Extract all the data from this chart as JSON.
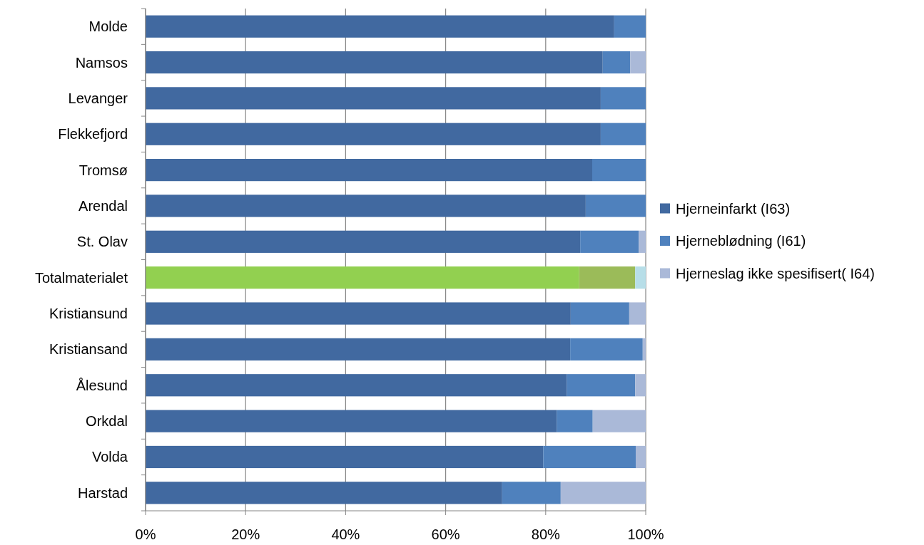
{
  "chart_data": {
    "type": "bar",
    "orientation": "horizontal",
    "stacked": true,
    "categories": [
      "Molde",
      "Namsos",
      "Levanger",
      "Flekkefjord",
      "Tromsø",
      "Arendal",
      "St. Olav",
      "Totalmaterialet",
      "Kristiansund",
      "Kristiansand",
      "Ålesund",
      "Orkdal",
      "Volda",
      "Harstad"
    ],
    "series": [
      {
        "name": "Hjerneinfarkt (I63)",
        "color": "#4169a0",
        "colors": [
          "#4169a0",
          "#4169a0",
          "#4169a0",
          "#4169a0",
          "#4169a0",
          "#4169a0",
          "#4169a0",
          "#92d050",
          "#4169a0",
          "#4169a0",
          "#4169a0",
          "#4169a0",
          "#4169a0",
          "#4169a0"
        ],
        "values": [
          93.7,
          91.4,
          91.0,
          91.0,
          89.3,
          88.0,
          86.9,
          86.7,
          85.0,
          84.9,
          84.2,
          82.2,
          79.5,
          71.3
        ]
      },
      {
        "name": "Hjerneblødning (I61)",
        "color": "#4f81bd",
        "colors": [
          "#4f81bd",
          "#4f81bd",
          "#4f81bd",
          "#4f81bd",
          "#4f81bd",
          "#4f81bd",
          "#4f81bd",
          "#9bbb59",
          "#4f81bd",
          "#4f81bd",
          "#4f81bd",
          "#4f81bd",
          "#4f81bd",
          "#4f81bd"
        ],
        "values": [
          6.3,
          5.5,
          9.0,
          9.0,
          10.7,
          12.0,
          11.7,
          11.2,
          11.7,
          14.5,
          13.7,
          7.2,
          18.5,
          11.7
        ]
      },
      {
        "name": "Hjerneslag ikke spesifisert( I64)",
        "color": "#aab9d8",
        "colors": [
          "#aab9d8",
          "#aab9d8",
          "#aab9d8",
          "#aab9d8",
          "#aab9d8",
          "#aab9d8",
          "#aab9d8",
          "#b7dee8",
          "#aab9d8",
          "#aab9d8",
          "#aab9d8",
          "#aab9d8",
          "#aab9d8",
          "#aab9d8"
        ],
        "values": [
          0,
          3.1,
          0,
          0,
          0,
          0,
          1.4,
          2.1,
          3.3,
          0.6,
          2.1,
          10.6,
          2.0,
          17.0
        ]
      }
    ],
    "xlim": [
      0,
      100
    ],
    "xticks": [
      {
        "value": 0,
        "label": "0%"
      },
      {
        "value": 20,
        "label": "20%"
      },
      {
        "value": 40,
        "label": "40%"
      },
      {
        "value": 60,
        "label": "60%"
      },
      {
        "value": 80,
        "label": "80%"
      },
      {
        "value": 100,
        "label": "100%"
      }
    ],
    "grid": "x",
    "legend": "right"
  }
}
